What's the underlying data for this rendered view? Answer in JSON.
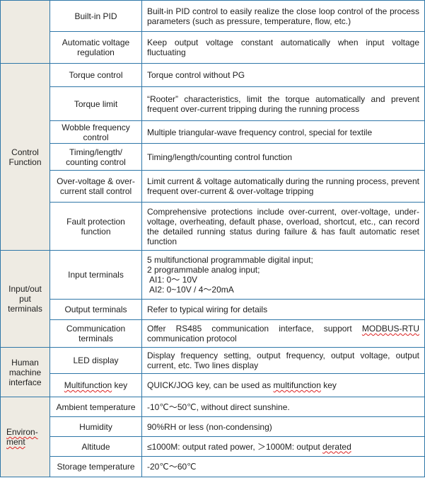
{
  "groups": {
    "first": "",
    "control": "Control Function",
    "io": "Input/out put terminals",
    "hmi": "Human machine interface",
    "env_a": "Environ-",
    "env_b": "ment"
  },
  "rows": [
    {
      "feature": "Built-in PID",
      "desc": "Built-in PID control to easily realize the close loop control of the process parameters (such as pressure, temperature, flow, etc.)"
    },
    {
      "feature": "Automatic voltage regulation",
      "desc": "Keep output voltage constant automatically when input voltage fluctuating"
    },
    {
      "feature": "Torque control",
      "desc": "Torque control without PG"
    },
    {
      "feature": "Torque limit",
      "desc": "“Rooter” characteristics, limit the torque automatically and prevent frequent over-current tripping during the running process"
    },
    {
      "feature": "Wobble frequency control",
      "desc": "Multiple triangular-wave frequency control, special for textile"
    },
    {
      "feature": "Timing/length/ counting control",
      "desc": "Timing/length/counting control function"
    },
    {
      "feature": "Over-voltage & over-current stall control",
      "desc": "Limit current & voltage automatically during the running process, prevent frequent over-current & over-voltage tripping"
    },
    {
      "feature": "Fault protection function",
      "desc": "Comprehensive protections include over-current, over-voltage, under-voltage, overheating, default phase, overload, shortcut, etc., can record the detailed running status during failure & has fault automatic reset function"
    },
    {
      "feature": "Input terminals",
      "lines": [
        "5 multifunctional programmable digital input;",
        "2 programmable analog input;",
        " AI1: 0～ 10V",
        " AI2: 0~10V / 4～20mA"
      ]
    },
    {
      "feature": "Output terminals",
      "desc": "Refer to typical wiring for details"
    },
    {
      "feature": "Communication terminals",
      "desc_pre": "Offer RS485 communication interface, support ",
      "desc_mark": "MODBUS-RTU",
      "desc_post": " communication protocol"
    },
    {
      "feature": "LED display",
      "desc": "Display frequency setting, output frequency, output voltage, output current, etc. Two lines display"
    },
    {
      "feature_mark": "Multifunction",
      "feature_post": " key",
      "desc_pre": "QUICK/JOG key, can be used as ",
      "desc_mark": "multifunction",
      "desc_post": " key"
    },
    {
      "feature": "Ambient temperature",
      "desc": "-10℃～50℃, without direct sunshine."
    },
    {
      "feature": "Humidity",
      "desc": "90%RH or less (non-condensing)"
    },
    {
      "feature": "Altitude",
      "desc_pre": "≤1000M: output rated power, ＞1000M: output ",
      "desc_mark": "derated",
      "desc_post": ""
    },
    {
      "feature": "Storage temperature",
      "desc": "-20℃～60℃"
    }
  ],
  "colors": {
    "border": "#2f77a8",
    "group_bg": "#eeebe3",
    "spell_mark": "#d22222"
  }
}
